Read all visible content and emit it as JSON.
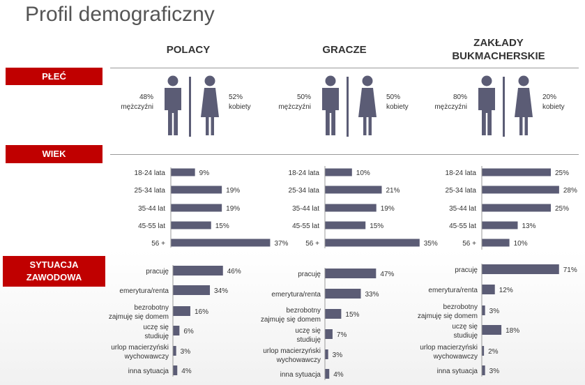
{
  "title": "Profil demograficzny",
  "columns": [
    {
      "name": "POLACY"
    },
    {
      "name": "GRACZE"
    },
    {
      "name": "ZAKŁADY BUKMACHERSKIE",
      "line1": "ZAKŁADY",
      "line2": "BUKMACHERSKIE"
    }
  ],
  "sections": {
    "gender": "PŁEĆ",
    "age": "WIEK",
    "job_line1": "SYTUACJA",
    "job_line2": "ZAWODOWA"
  },
  "gender": [
    {
      "men_pct": "48%",
      "men_label": "mężczyźni",
      "women_pct": "52%",
      "women_label": "kobiety"
    },
    {
      "men_pct": "50%",
      "men_label": "mężczyźni",
      "women_pct": "50%",
      "women_label": "kobiety"
    },
    {
      "men_pct": "80%",
      "men_label": "mężczyźni",
      "women_pct": "20%",
      "women_label": "kobiety"
    }
  ],
  "colors": {
    "bar": "#5b5c75",
    "accent": "#c00000"
  },
  "chart_data": [
    {
      "type": "bar",
      "title": "WIEK",
      "categories": [
        "18-24 lata",
        "25-34 lata",
        "35-44 lat",
        "45-55 lat",
        "56 +"
      ],
      "series": [
        {
          "name": "POLACY",
          "values": [
            9,
            19,
            19,
            15,
            37
          ]
        },
        {
          "name": "GRACZE",
          "values": [
            10,
            21,
            19,
            15,
            35
          ]
        },
        {
          "name": "ZAKŁADY BUKMACHERSKIE",
          "values": [
            25,
            28,
            25,
            13,
            10
          ]
        }
      ],
      "unit": "%"
    },
    {
      "type": "bar",
      "title": "SYTUACJA ZAWODOWA",
      "categories": [
        "pracuję",
        "emerytura/renta",
        "bezrobotny zajmuję się domem",
        "uczę się studiuję",
        "urlop macierzyński wychowawczy",
        "inna sytuacja"
      ],
      "category_lines": [
        [
          "pracuję"
        ],
        [
          "emerytura/renta"
        ],
        [
          "bezrobotny",
          "zajmuję się domem"
        ],
        [
          "uczę się",
          "studiuję"
        ],
        [
          "urlop macierzyński",
          "wychowawczy"
        ],
        [
          "inna sytuacja"
        ]
      ],
      "series": [
        {
          "name": "POLACY",
          "values": [
            46,
            34,
            16,
            6,
            3,
            4
          ]
        },
        {
          "name": "GRACZE",
          "values": [
            47,
            33,
            15,
            7,
            3,
            4
          ]
        },
        {
          "name": "ZAKŁADY BUKMACHERSKIE",
          "values": [
            71,
            12,
            3,
            18,
            2,
            3
          ]
        }
      ],
      "unit": "%"
    }
  ]
}
